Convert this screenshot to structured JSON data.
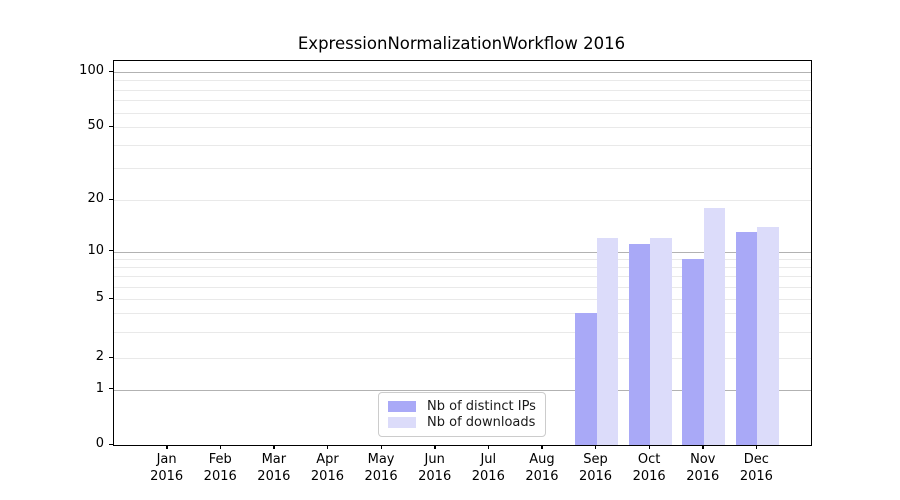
{
  "chart_data": {
    "type": "bar",
    "title": "ExpressionNormalizationWorkflow 2016",
    "categories": [
      "Jan",
      "Feb",
      "Mar",
      "Apr",
      "May",
      "Jun",
      "Jul",
      "Aug",
      "Sep",
      "Oct",
      "Nov",
      "Dec"
    ],
    "x_year": "2016",
    "series": [
      {
        "name": "Nb of distinct IPs",
        "color": "#a9a9f7",
        "values": [
          0,
          0,
          0,
          0,
          0,
          0,
          0,
          0,
          4,
          11,
          9,
          13
        ]
      },
      {
        "name": "Nb of downloads",
        "color": "#dcdcfa",
        "values": [
          0,
          0,
          0,
          0,
          0,
          0,
          0,
          0,
          12,
          12,
          18,
          14
        ]
      }
    ],
    "yticks": [
      100,
      50,
      20,
      10,
      5,
      2,
      1,
      0
    ],
    "major_gridlines": [
      1,
      10,
      100
    ],
    "minor_gridlines": [
      2,
      3,
      4,
      5,
      6,
      7,
      8,
      9,
      20,
      30,
      40,
      50,
      60,
      70,
      80,
      90
    ],
    "ylim": [
      0,
      115
    ],
    "yscale": "log-like",
    "grid": true,
    "legend_position": "lower center",
    "colors": {
      "major_grid": "#b2b2b2",
      "minor_grid": "#e9e9e9",
      "spine": "#000000",
      "text": "#1a1a1a",
      "legend_border": "#cccccc"
    }
  }
}
